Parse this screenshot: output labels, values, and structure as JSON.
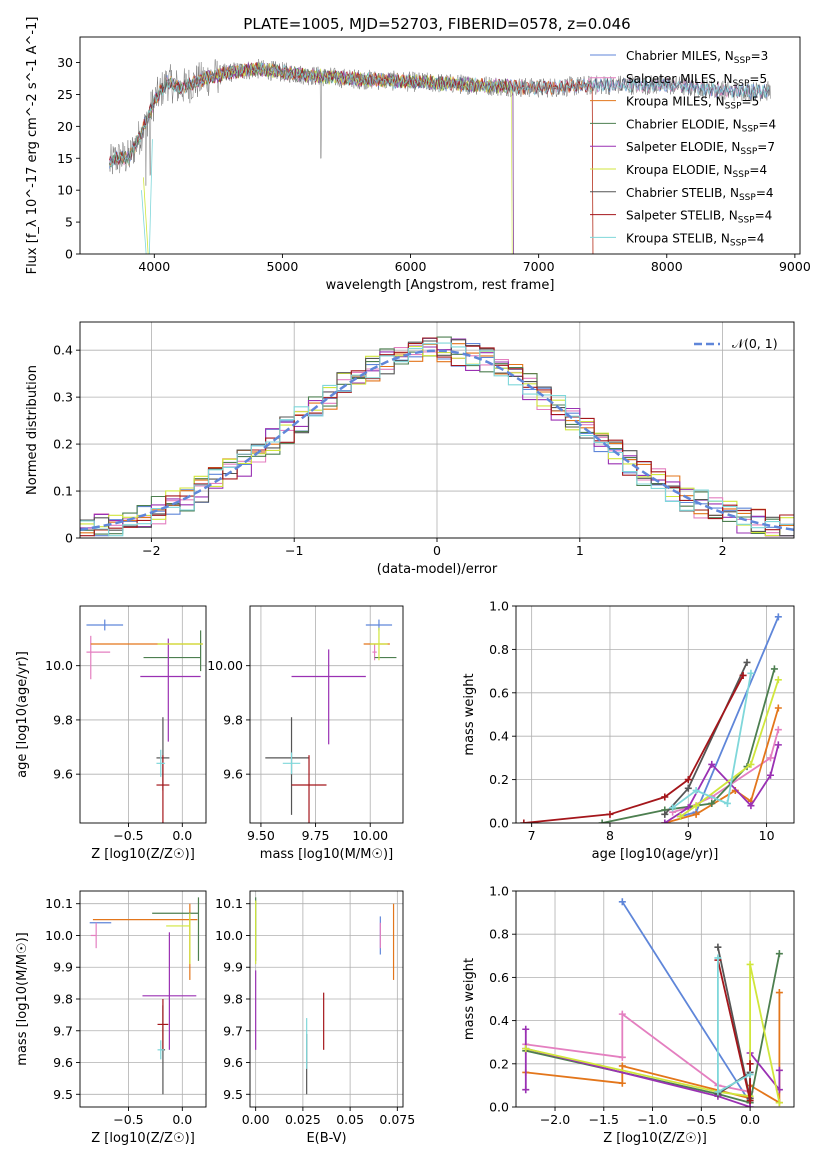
{
  "figure": {
    "title": "PLATE=1005, MJD=52703, FIBERID=0578, z=0.046"
  },
  "colors": {
    "Chabrier MILES": "#5f86d9",
    "Salpeter MILES": "#e47fc0",
    "Kroupa MILES": "#e3761b",
    "Chabrier ELODIE": "#4d7f50",
    "Salpeter ELODIE": "#9a31b3",
    "Kroupa ELODIE": "#d0e63c",
    "Chabrier STELIB": "#555555",
    "Salpeter STELIB": "#a4161b",
    "Kroupa STELIB": "#7fd7da"
  },
  "chart_data": [
    {
      "id": "spectrum",
      "type": "line",
      "xlabel": "wavelength [Angstrom, rest frame]",
      "ylabel": "Flux [f_λ 10^-17 erg cm^-2 s^-1 A^-1]",
      "xlim": [
        3420,
        9040
      ],
      "ylim": [
        0,
        34
      ],
      "xticks": [
        4000,
        5000,
        6000,
        7000,
        8000,
        9000
      ],
      "yticks": [
        0,
        5,
        10,
        15,
        20,
        25,
        30
      ],
      "grid": false,
      "legend_position": "top-right",
      "legend": [
        {
          "name": "Chabrier MILES",
          "nssp": "3"
        },
        {
          "name": "Salpeter MILES",
          "nssp": "5"
        },
        {
          "name": "Kroupa MILES",
          "nssp": "5"
        },
        {
          "name": "Chabrier ELODIE",
          "nssp": "4"
        },
        {
          "name": "Salpeter ELODIE",
          "nssp": "7"
        },
        {
          "name": "Kroupa ELODIE",
          "nssp": "4"
        },
        {
          "name": "Chabrier STELIB",
          "nssp": "4"
        },
        {
          "name": "Salpeter STELIB",
          "nssp": "4"
        },
        {
          "name": "Kroupa STELIB",
          "nssp": "4"
        }
      ],
      "continuum": {
        "x": [
          3650,
          3700,
          3800,
          3900,
          4000,
          4100,
          4200,
          4400,
          4600,
          4800,
          5000,
          5200,
          5500,
          6000,
          6500,
          7000,
          7500,
          8000,
          8500,
          8800
        ],
        "y": [
          14,
          15,
          15,
          19,
          24,
          27,
          26,
          27.5,
          28.5,
          29,
          28.5,
          28,
          27.5,
          27,
          26.5,
          26,
          26.5,
          26.5,
          25.5,
          25.5
        ]
      }
    },
    {
      "id": "residuals",
      "type": "bar",
      "xlabel": "(data-model)/error",
      "ylabel": "Normed distribution",
      "xlim": [
        -2.5,
        2.5
      ],
      "ylim": [
        0,
        0.46
      ],
      "xticks": [
        -2,
        -1,
        0,
        1,
        2
      ],
      "yticks": [
        0.0,
        0.1,
        0.2,
        0.3,
        0.4
      ],
      "grid": true,
      "legend_position": "top-right",
      "legend": "N(0, 1)",
      "bin_width": 0.1,
      "gaussian": {
        "mean": 0.0,
        "sigma": 1.0
      }
    },
    {
      "id": "age_vs_Z",
      "type": "scatter",
      "xlabel": "Z [log10(Z/Z☉)]",
      "ylabel": "age  [log10(age/yr)]",
      "xlim": [
        -0.95,
        0.22
      ],
      "ylim": [
        9.42,
        10.22
      ],
      "xticks": [
        -0.5,
        0.0
      ],
      "yticks": [
        9.6,
        9.8,
        10.0
      ],
      "grid": true,
      "points": [
        {
          "series": "Chabrier MILES",
          "x": -0.72,
          "xerr": [
            0.17,
            0.17
          ],
          "y": 10.15,
          "yerr": [
            0.02,
            0.02
          ]
        },
        {
          "series": "Salpeter MILES",
          "x": -0.85,
          "xerr": [
            0.04,
            0.18
          ],
          "y": 10.05,
          "yerr": [
            0.1,
            0.06
          ]
        },
        {
          "series": "Kroupa MILES",
          "x": 0.07,
          "xerr": [
            0.92,
            0.12
          ],
          "y": 10.08,
          "yerr": [
            0.0,
            0.0
          ]
        },
        {
          "series": "Chabrier ELODIE",
          "x": 0.17,
          "xerr": [
            0.53,
            0.0
          ],
          "y": 10.03,
          "yerr": [
            0.05,
            0.1
          ]
        },
        {
          "series": "Salpeter ELODIE",
          "x": -0.13,
          "xerr": [
            0.26,
            0.3
          ],
          "y": 9.96,
          "yerr": [
            0.24,
            0.14
          ]
        },
        {
          "series": "Kroupa ELODIE",
          "x": 0.07,
          "xerr": [
            0.3,
            0.12
          ],
          "y": 10.08,
          "yerr": [
            0.0,
            0.0
          ]
        },
        {
          "series": "Chabrier STELIB",
          "x": -0.18,
          "xerr": [
            0.06,
            0.06
          ],
          "y": 9.66,
          "yerr": [
            0.12,
            0.15
          ]
        },
        {
          "series": "Salpeter STELIB",
          "x": -0.18,
          "xerr": [
            0.06,
            0.06
          ],
          "y": 9.56,
          "yerr": [
            0.14,
            0.11
          ]
        },
        {
          "series": "Kroupa STELIB",
          "x": -0.2,
          "xerr": [
            0.04,
            0.04
          ],
          "y": 9.64,
          "yerr": [
            0.05,
            0.05
          ]
        }
      ]
    },
    {
      "id": "age_vs_mass",
      "type": "scatter",
      "xlabel": "mass [log10(M/M☉)]",
      "ylabel": "",
      "xlim": [
        9.45,
        10.15
      ],
      "ylim": [
        9.42,
        10.22
      ],
      "xticks": [
        9.5,
        9.75,
        10.0
      ],
      "yticks": [
        9.6,
        9.8,
        10.0
      ],
      "grid": true,
      "points": [
        {
          "series": "Chabrier MILES",
          "x": 10.04,
          "xerr": [
            0.06,
            0.06
          ],
          "y": 10.15,
          "yerr": [
            0.02,
            0.02
          ]
        },
        {
          "series": "Salpeter MILES",
          "x": 10.02,
          "xerr": [
            0.01,
            0.01
          ],
          "y": 10.05,
          "yerr": [
            0.03,
            0.03
          ]
        },
        {
          "series": "Kroupa MILES",
          "x": 10.05,
          "xerr": [
            0.08,
            0.04
          ],
          "y": 10.08,
          "yerr": [
            0.0,
            0.0
          ]
        },
        {
          "series": "Chabrier ELODIE",
          "x": 10.07,
          "xerr": [
            0.05,
            0.05
          ],
          "y": 10.03,
          "yerr": [
            0.0,
            0.0
          ]
        },
        {
          "series": "Salpeter ELODIE",
          "x": 9.81,
          "xerr": [
            0.17,
            0.17
          ],
          "y": 9.96,
          "yerr": [
            0.25,
            0.1
          ]
        },
        {
          "series": "Kroupa ELODIE",
          "x": 10.04,
          "xerr": [
            0.04,
            0.04
          ],
          "y": 10.08,
          "yerr": [
            0.06,
            0.06
          ]
        },
        {
          "series": "Chabrier STELIB",
          "x": 9.64,
          "xerr": [
            0.12,
            0.08
          ],
          "y": 9.66,
          "yerr": [
            0.21,
            0.15
          ]
        },
        {
          "series": "Salpeter STELIB",
          "x": 9.72,
          "xerr": [
            0.08,
            0.08
          ],
          "y": 9.56,
          "yerr": [
            0.14,
            0.11
          ]
        },
        {
          "series": "Kroupa STELIB",
          "x": 9.64,
          "xerr": [
            0.04,
            0.04
          ],
          "y": 9.64,
          "yerr": [
            0.04,
            0.04
          ]
        }
      ]
    },
    {
      "id": "weight_vs_age",
      "type": "line",
      "xlabel": "age  [log10(age/yr)]",
      "ylabel": "mass weight",
      "xlim": [
        6.8,
        10.35
      ],
      "ylim": [
        0,
        1.0
      ],
      "xticks": [
        7,
        8,
        9,
        10
      ],
      "yticks": [
        0.0,
        0.2,
        0.4,
        0.6,
        0.8,
        1.0
      ],
      "grid": true,
      "series": [
        {
          "name": "Chabrier MILES",
          "x": [
            8.9,
            9.1,
            10.15
          ],
          "y": [
            0.03,
            0.05,
            0.95
          ]
        },
        {
          "name": "Salpeter MILES",
          "x": [
            8.8,
            9.0,
            9.3,
            10.05,
            10.15
          ],
          "y": [
            0.05,
            0.07,
            0.12,
            0.3,
            0.43
          ]
        },
        {
          "name": "Kroupa MILES",
          "x": [
            8.7,
            9.1,
            9.6,
            9.8,
            10.15
          ],
          "y": [
            0.0,
            0.04,
            0.15,
            0.1,
            0.53
          ]
        },
        {
          "name": "Chabrier ELODIE",
          "x": [
            7.9,
            8.7,
            9.3,
            9.75,
            10.1
          ],
          "y": [
            0.0,
            0.06,
            0.09,
            0.26,
            0.71
          ]
        },
        {
          "name": "Salpeter ELODIE",
          "x": [
            8.7,
            9.0,
            9.3,
            9.8,
            10.05,
            10.15
          ],
          "y": [
            0.0,
            0.07,
            0.27,
            0.08,
            0.22,
            0.36
          ]
        },
        {
          "name": "Kroupa ELODIE",
          "x": [
            8.9,
            9.1,
            9.8,
            10.15
          ],
          "y": [
            0.03,
            0.08,
            0.27,
            0.66
          ]
        },
        {
          "name": "Chabrier STELIB",
          "x": [
            8.7,
            9.0,
            9.75
          ],
          "y": [
            0.04,
            0.16,
            0.74
          ]
        },
        {
          "name": "Salpeter STELIB",
          "x": [
            6.9,
            8.0,
            8.7,
            9.0,
            9.7
          ],
          "y": [
            0.0,
            0.04,
            0.12,
            0.2,
            0.68
          ]
        },
        {
          "name": "Kroupa STELIB",
          "x": [
            8.8,
            9.1,
            9.5,
            9.8
          ],
          "y": [
            0.07,
            0.15,
            0.09,
            0.69
          ]
        }
      ]
    },
    {
      "id": "mass_vs_Z",
      "type": "scatter",
      "xlabel": "Z [log10(Z/Z☉)]",
      "ylabel": "mass [log10(M/M☉)]",
      "xlim": [
        -0.95,
        0.22
      ],
      "ylim": [
        9.46,
        10.14
      ],
      "xticks": [
        -0.5,
        0.0
      ],
      "yticks": [
        9.5,
        9.6,
        9.7,
        9.8,
        9.9,
        10.0,
        10.1
      ],
      "grid": true,
      "points": [
        {
          "series": "Chabrier MILES",
          "x": -0.76,
          "xerr": [
            0.1,
            0.1
          ],
          "y": 10.04,
          "yerr": [
            0.0,
            0.0
          ]
        },
        {
          "series": "Salpeter MILES",
          "x": -0.8,
          "xerr": [
            0.05,
            0.0
          ],
          "y": 10.0,
          "yerr": [
            0.04,
            0.04
          ]
        },
        {
          "series": "Kroupa MILES",
          "x": 0.07,
          "xerr": [
            0.9,
            0.07
          ],
          "y": 10.05,
          "yerr": [
            0.19,
            0.05
          ]
        },
        {
          "series": "Chabrier ELODIE",
          "x": 0.15,
          "xerr": [
            0.43,
            0.0
          ],
          "y": 10.07,
          "yerr": [
            0.15,
            0.05
          ]
        },
        {
          "series": "Salpeter ELODIE",
          "x": -0.12,
          "xerr": [
            0.25,
            0.25
          ],
          "y": 9.81,
          "yerr": [
            0.17,
            0.2
          ]
        },
        {
          "series": "Kroupa ELODIE",
          "x": 0.07,
          "xerr": [
            0.22,
            0.0
          ],
          "y": 10.03,
          "yerr": [
            0.12,
            0.04
          ]
        },
        {
          "series": "Chabrier STELIB",
          "x": -0.18,
          "xerr": [
            0.02,
            0.02
          ],
          "y": 9.64,
          "yerr": [
            0.14,
            0.14
          ]
        },
        {
          "series": "Salpeter STELIB",
          "x": -0.18,
          "xerr": [
            0.05,
            0.05
          ],
          "y": 9.72,
          "yerr": [
            0.08,
            0.08
          ]
        },
        {
          "series": "Kroupa STELIB",
          "x": -0.2,
          "xerr": [
            0.03,
            0.03
          ],
          "y": 9.64,
          "yerr": [
            0.03,
            0.03
          ]
        }
      ]
    },
    {
      "id": "mass_vs_EBV",
      "type": "scatter",
      "xlabel": "E(B-V)",
      "ylabel": "",
      "xlim": [
        -0.003,
        0.078
      ],
      "ylim": [
        9.46,
        10.14
      ],
      "xticks": [
        0.0,
        0.025,
        0.05,
        0.075
      ],
      "yticks": [
        9.5,
        9.6,
        9.7,
        9.8,
        9.9,
        10.0,
        10.1
      ],
      "grid": true,
      "points": [
        {
          "series": "Chabrier MILES",
          "x": 0.066,
          "yerr": [
            0.1,
            0.02
          ],
          "y": 10.04
        },
        {
          "series": "Salpeter MILES",
          "x": 0.066,
          "yerr": [
            0.04,
            0.04
          ],
          "y": 10.0
        },
        {
          "series": "Kroupa MILES",
          "x": 0.073,
          "yerr": [
            0.19,
            0.05
          ],
          "y": 10.05
        },
        {
          "series": "Chabrier ELODIE",
          "x": 0.0,
          "yerr": [
            0.15,
            0.05
          ],
          "y": 10.07
        },
        {
          "series": "Salpeter ELODIE",
          "x": 0.0,
          "yerr": [
            0.17,
            0.08
          ],
          "y": 9.81
        },
        {
          "series": "Kroupa ELODIE",
          "x": 0.0,
          "yerr": [
            0.12,
            0.08
          ],
          "y": 10.03
        },
        {
          "series": "Chabrier STELIB",
          "x": 0.027,
          "yerr": [
            0.14,
            0.05
          ],
          "y": 9.64
        },
        {
          "series": "Salpeter STELIB",
          "x": 0.036,
          "yerr": [
            0.08,
            0.1
          ],
          "y": 9.72
        },
        {
          "series": "Kroupa STELIB",
          "x": 0.027,
          "yerr": [
            0.06,
            0.1
          ],
          "y": 9.64
        }
      ]
    },
    {
      "id": "weight_vs_Z",
      "type": "line",
      "xlabel": "Z [log10(Z/Z☉)]",
      "ylabel": "mass weight",
      "xlim": [
        -2.4,
        0.45
      ],
      "ylim": [
        0,
        1.0
      ],
      "xticks": [
        -2.0,
        -1.5,
        -1.0,
        -0.5,
        0.0
      ],
      "yticks": [
        0.0,
        0.2,
        0.4,
        0.6,
        0.8,
        1.0
      ],
      "grid": true,
      "series": [
        {
          "name": "Chabrier MILES",
          "x": [
            -1.31,
            0.0
          ],
          "y": [
            0.95,
            0.02
          ]
        },
        {
          "name": "Salpeter MILES",
          "x": [
            -2.3,
            -1.31,
            -1.31,
            -0.33,
            0.0
          ],
          "y": [
            0.29,
            0.23,
            0.43,
            0.1,
            0.07
          ]
        },
        {
          "name": "Kroupa MILES",
          "x": [
            -2.3,
            -1.31,
            -1.31,
            0.0,
            0.0,
            0.3,
            0.3
          ],
          "y": [
            0.16,
            0.11,
            0.19,
            0.04,
            0.1,
            0.02,
            0.53
          ]
        },
        {
          "name": "Chabrier ELODIE",
          "x": [
            -2.3,
            -0.33,
            0.0,
            0.3
          ],
          "y": [
            0.26,
            0.06,
            0.02,
            0.71
          ]
        },
        {
          "name": "Salpeter ELODIE",
          "x": [
            -2.3,
            -2.3,
            -2.3,
            -0.33,
            0.0,
            0.0,
            0.3,
            0.3
          ],
          "y": [
            0.36,
            0.08,
            0.27,
            0.05,
            0.0,
            0.25,
            0.08,
            0.17
          ]
        },
        {
          "name": "Kroupa ELODIE",
          "x": [
            -2.3,
            -0.33,
            0.0,
            0.0,
            0.3
          ],
          "y": [
            0.27,
            0.07,
            0.05,
            0.66,
            0.02
          ]
        },
        {
          "name": "Chabrier STELIB",
          "x": [
            -0.33,
            0.0,
            0.0,
            -0.33
          ],
          "y": [
            0.74,
            0.04,
            0.16,
            0.06
          ]
        },
        {
          "name": "Salpeter STELIB",
          "x": [
            -0.33,
            0.0,
            0.0
          ],
          "y": [
            0.68,
            0.03,
            0.2
          ]
        },
        {
          "name": "Kroupa STELIB",
          "x": [
            -0.33,
            -0.33,
            0.0
          ],
          "y": [
            0.69,
            0.07,
            0.15
          ]
        }
      ]
    }
  ]
}
